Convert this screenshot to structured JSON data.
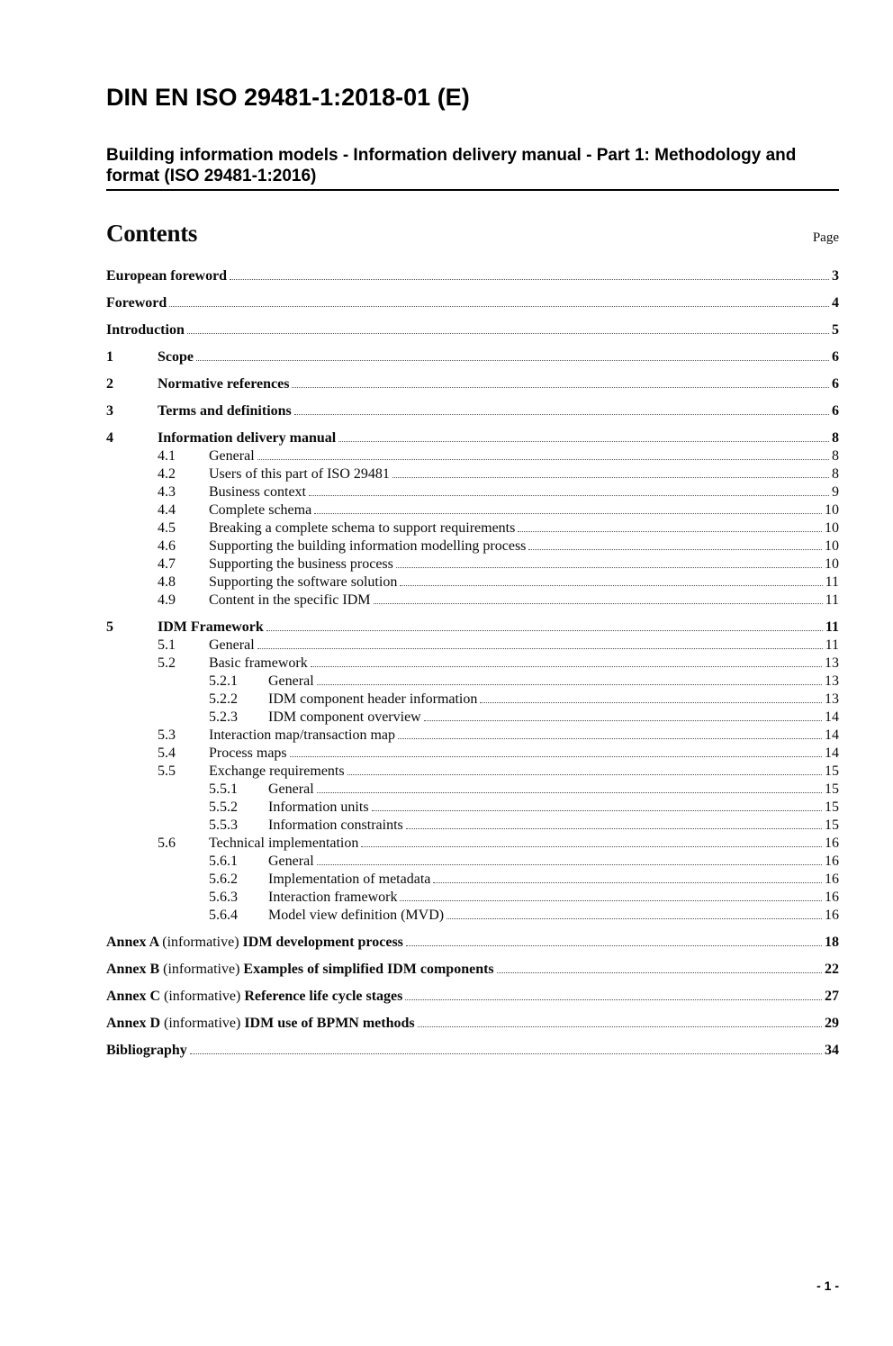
{
  "header": {
    "doc_number": "DIN EN ISO 29481-1:2018-01 (E)",
    "doc_title": "Building information models - Information delivery manual - Part 1: Methodology and format (ISO 29481-1:2016)"
  },
  "contents": {
    "heading": "Contents",
    "page_label": "Page"
  },
  "toc": [
    {
      "level": 1,
      "bold": true,
      "number": "",
      "title": "European foreword",
      "page": "3"
    },
    {
      "level": 1,
      "bold": true,
      "number": "",
      "title": "Foreword",
      "page": "4"
    },
    {
      "level": 1,
      "bold": true,
      "number": "",
      "title": "Introduction",
      "page": "5"
    },
    {
      "level": 1,
      "bold": true,
      "number": "1",
      "title": "Scope",
      "page": "6"
    },
    {
      "level": 1,
      "bold": true,
      "number": "2",
      "title": "Normative references",
      "page": "6"
    },
    {
      "level": 1,
      "bold": true,
      "number": "3",
      "title": "Terms and definitions",
      "page": "6"
    },
    {
      "level": 1,
      "bold": true,
      "number": "4",
      "title": "Information delivery manual",
      "page": "8"
    },
    {
      "level": 2,
      "bold": false,
      "number": "4.1",
      "title": "General",
      "page": "8"
    },
    {
      "level": 2,
      "bold": false,
      "number": "4.2",
      "title": "Users of this part of ISO 29481",
      "page": "8"
    },
    {
      "level": 2,
      "bold": false,
      "number": "4.3",
      "title": "Business context",
      "page": "9"
    },
    {
      "level": 2,
      "bold": false,
      "number": "4.4",
      "title": "Complete schema",
      "page": "10"
    },
    {
      "level": 2,
      "bold": false,
      "number": "4.5",
      "title": "Breaking a complete schema to support requirements",
      "page": "10"
    },
    {
      "level": 2,
      "bold": false,
      "number": "4.6",
      "title": "Supporting the building information modelling process",
      "page": "10"
    },
    {
      "level": 2,
      "bold": false,
      "number": "4.7",
      "title": "Supporting the business process",
      "page": "10"
    },
    {
      "level": 2,
      "bold": false,
      "number": "4.8",
      "title": "Supporting the software solution",
      "page": "11"
    },
    {
      "level": 2,
      "bold": false,
      "number": "4.9",
      "title": "Content in the specific IDM",
      "page": "11"
    },
    {
      "level": 1,
      "bold": true,
      "number": "5",
      "title": "IDM Framework",
      "page": "11"
    },
    {
      "level": 2,
      "bold": false,
      "number": "5.1",
      "title": "General",
      "page": "11"
    },
    {
      "level": 2,
      "bold": false,
      "number": "5.2",
      "title": "Basic framework",
      "page": "13"
    },
    {
      "level": 3,
      "bold": false,
      "number": "5.2.1",
      "title": "General",
      "page": "13"
    },
    {
      "level": 3,
      "bold": false,
      "number": "5.2.2",
      "title": "IDM component header information",
      "page": "13"
    },
    {
      "level": 3,
      "bold": false,
      "number": "5.2.3",
      "title": "IDM component overview",
      "page": "14"
    },
    {
      "level": 2,
      "bold": false,
      "number": "5.3",
      "title": "Interaction map/transaction map",
      "page": "14"
    },
    {
      "level": 2,
      "bold": false,
      "number": "5.4",
      "title": "Process maps",
      "page": "14"
    },
    {
      "level": 2,
      "bold": false,
      "number": "5.5",
      "title": "Exchange requirements",
      "page": "15"
    },
    {
      "level": 3,
      "bold": false,
      "number": "5.5.1",
      "title": "General",
      "page": "15"
    },
    {
      "level": 3,
      "bold": false,
      "number": "5.5.2",
      "title": "Information units",
      "page": "15"
    },
    {
      "level": 3,
      "bold": false,
      "number": "5.5.3",
      "title": "Information constraints",
      "page": "15"
    },
    {
      "level": 2,
      "bold": false,
      "number": "5.6",
      "title": "Technical implementation",
      "page": "16"
    },
    {
      "level": 3,
      "bold": false,
      "number": "5.6.1",
      "title": "General",
      "page": "16"
    },
    {
      "level": 3,
      "bold": false,
      "number": "5.6.2",
      "title": "Implementation of metadata",
      "page": "16"
    },
    {
      "level": 3,
      "bold": false,
      "number": "5.6.3",
      "title": "Interaction framework",
      "page": "16"
    },
    {
      "level": 3,
      "bold": false,
      "number": "5.6.4",
      "title": "Model view definition (MVD)",
      "page": "16"
    },
    {
      "level": 1,
      "bold": true,
      "number": "",
      "prefix": "Annex A",
      "qualifier": "(informative)",
      "title": "IDM development process",
      "page": "18"
    },
    {
      "level": 1,
      "bold": true,
      "number": "",
      "prefix": "Annex B",
      "qualifier": "(informative)",
      "title": "Examples of simplified IDM components",
      "page": "22"
    },
    {
      "level": 1,
      "bold": true,
      "number": "",
      "prefix": "Annex C",
      "qualifier": "(informative)",
      "title": "Reference life cycle stages",
      "page": "27"
    },
    {
      "level": 1,
      "bold": true,
      "number": "",
      "prefix": "Annex D",
      "qualifier": "(informative)",
      "title": "IDM use of BPMN methods",
      "page": "29"
    },
    {
      "level": 1,
      "bold": true,
      "number": "",
      "title": "Bibliography",
      "page": "34"
    }
  ],
  "footer": {
    "page_indicator": "- 1 -"
  },
  "colors": {
    "text": "#0a0a0a",
    "rule": "#000000",
    "leader_dots": "#4a4a4a",
    "background": "#ffffff"
  }
}
